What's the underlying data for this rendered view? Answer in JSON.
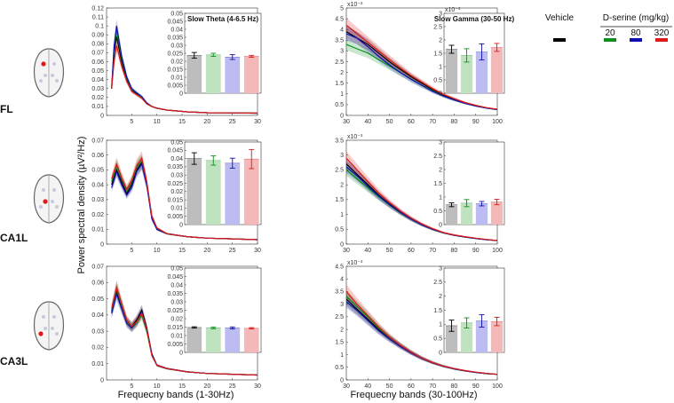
{
  "row_labels": [
    "FL",
    "CA1L",
    "CA3L"
  ],
  "ylabel": "Power spectral density (µV²/Hz)",
  "xlabel_low": "Frequecny bands (1-30Hz)",
  "xlabel_high": "Frequecny bands (30-100Hz)",
  "legend": {
    "vehicle": "Vehicle",
    "dserine": "D-serine (mg/kg)",
    "doses": [
      "20",
      "80",
      "320"
    ]
  },
  "colors": {
    "vehicle": "#000000",
    "d20": "#0a8f1e",
    "d80": "#1010b0",
    "d320": "#e01818",
    "bar_vehicle": "#bdbdbd",
    "bar_d20": "#bfe3bf",
    "bar_d80": "#bcbcf2",
    "bar_d320": "#f5b8b8"
  },
  "chart_data": [
    {
      "type": "line",
      "panel": "FL-low",
      "xlabel": "Frequecny bands (1-30Hz)",
      "ylabel": "Power spectral density (µV²/Hz)",
      "xlim": [
        0,
        30
      ],
      "ylim": [
        0,
        0.12
      ],
      "xticks": [
        "5",
        "10",
        "15",
        "20",
        "25",
        "30"
      ],
      "yticks": [
        "0",
        "0.01",
        "0.02",
        "0.03",
        "0.04",
        "0.05",
        "0.06",
        "0.07",
        "0.08",
        "0.09",
        "0.1",
        "0.11",
        "0.12"
      ],
      "x": [
        1,
        1.5,
        2,
        3,
        4,
        5,
        6,
        7,
        8,
        9,
        10,
        12,
        14,
        16,
        18,
        20,
        25,
        30
      ],
      "series": [
        {
          "name": "Vehicle",
          "values": [
            0.03,
            0.07,
            0.088,
            0.06,
            0.04,
            0.028,
            0.024,
            0.02,
            0.013,
            0.01,
            0.008,
            0.006,
            0.005,
            0.004,
            0.0035,
            0.003,
            0.0028,
            0.0025
          ]
        },
        {
          "name": "20",
          "values": [
            0.03,
            0.075,
            0.095,
            0.064,
            0.042,
            0.029,
            0.025,
            0.02,
            0.013,
            0.01,
            0.008,
            0.006,
            0.005,
            0.004,
            0.0035,
            0.003,
            0.0028,
            0.0025
          ]
        },
        {
          "name": "80",
          "values": [
            0.03,
            0.078,
            0.1,
            0.066,
            0.043,
            0.03,
            0.025,
            0.021,
            0.014,
            0.01,
            0.008,
            0.006,
            0.005,
            0.004,
            0.0035,
            0.003,
            0.0028,
            0.0025
          ]
        },
        {
          "name": "320",
          "values": [
            0.03,
            0.06,
            0.078,
            0.055,
            0.038,
            0.027,
            0.023,
            0.019,
            0.013,
            0.01,
            0.008,
            0.006,
            0.005,
            0.004,
            0.0035,
            0.003,
            0.0028,
            0.0025
          ]
        }
      ]
    },
    {
      "type": "bar",
      "panel": "FL-low-inset",
      "title": "Slow Theta (4-6.5 Hz)",
      "ylim": [
        0,
        0.05
      ],
      "yticks": [
        "0",
        "0.005",
        "0.01",
        "0.015",
        "0.02",
        "0.025",
        "0.03",
        "0.035",
        "0.04",
        "0.045",
        "0.05"
      ],
      "categories": [
        "Vehicle",
        "20",
        "80",
        "320"
      ],
      "values": [
        0.0237,
        0.024,
        0.0226,
        0.0231
      ],
      "errors": [
        0.0018,
        0.001,
        0.0015,
        0.0006
      ]
    },
    {
      "type": "line",
      "panel": "FL-high",
      "xlabel": "Frequecny bands (30-100Hz)",
      "exponent": "x10⁻³",
      "xlim": [
        30,
        100
      ],
      "ylim": [
        0,
        5
      ],
      "xticks": [
        "30",
        "40",
        "50",
        "60",
        "70",
        "80",
        "90",
        "100"
      ],
      "yticks": [
        "0",
        "0.5",
        "1",
        "1.5",
        "2",
        "2.5",
        "3",
        "3.5",
        "4",
        "4.5",
        "5"
      ],
      "x": [
        30,
        35,
        40,
        45,
        50,
        55,
        60,
        65,
        70,
        75,
        80,
        85,
        90,
        95,
        100
      ],
      "series": [
        {
          "name": "Vehicle",
          "values": [
            3.9,
            3.6,
            3.3,
            2.9,
            2.5,
            2.15,
            1.8,
            1.5,
            1.2,
            0.95,
            0.75,
            0.58,
            0.45,
            0.35,
            0.28
          ]
        },
        {
          "name": "20",
          "values": [
            3.3,
            3.1,
            2.9,
            2.6,
            2.3,
            2.0,
            1.7,
            1.4,
            1.15,
            0.9,
            0.72,
            0.56,
            0.44,
            0.34,
            0.27
          ]
        },
        {
          "name": "80",
          "values": [
            3.8,
            3.6,
            3.2,
            2.75,
            2.35,
            2.0,
            1.68,
            1.4,
            1.12,
            0.9,
            0.72,
            0.56,
            0.44,
            0.34,
            0.27
          ]
        },
        {
          "name": "320",
          "values": [
            4.2,
            3.8,
            3.4,
            3.0,
            2.6,
            2.22,
            1.85,
            1.55,
            1.25,
            0.98,
            0.78,
            0.6,
            0.47,
            0.36,
            0.29
          ]
        }
      ]
    },
    {
      "type": "bar",
      "panel": "FL-high-inset",
      "title": "Slow Gamma (30-50 Hz)",
      "exponent": "x10⁻³",
      "ylim": [
        0,
        3
      ],
      "yticks": [
        "0",
        "0.5",
        "1",
        "1.5",
        "2",
        "2.5",
        "3"
      ],
      "categories": [
        "Vehicle",
        "20",
        "80",
        "320"
      ],
      "values": [
        1.65,
        1.42,
        1.55,
        1.72
      ],
      "errors": [
        0.15,
        0.25,
        0.3,
        0.15
      ]
    },
    {
      "type": "line",
      "panel": "CA1L-low",
      "xlim": [
        0,
        30
      ],
      "ylim": [
        0,
        0.07
      ],
      "xticks": [
        "5",
        "10",
        "15",
        "20",
        "25",
        "30"
      ],
      "yticks": [
        "0",
        "0.01",
        "0.02",
        "0.03",
        "0.04",
        "0.05",
        "0.06",
        "0.07"
      ],
      "x": [
        1,
        2,
        3,
        4,
        5,
        6,
        7,
        8,
        9,
        10,
        12,
        14,
        16,
        18,
        20,
        25,
        30
      ],
      "series": [
        {
          "name": "Vehicle",
          "values": [
            0.04,
            0.05,
            0.042,
            0.034,
            0.04,
            0.05,
            0.055,
            0.04,
            0.018,
            0.01,
            0.007,
            0.006,
            0.005,
            0.0045,
            0.004,
            0.0035,
            0.003
          ]
        },
        {
          "name": "20",
          "values": [
            0.042,
            0.053,
            0.044,
            0.036,
            0.042,
            0.052,
            0.056,
            0.041,
            0.018,
            0.01,
            0.007,
            0.006,
            0.005,
            0.0045,
            0.004,
            0.0035,
            0.003
          ]
        },
        {
          "name": "80",
          "values": [
            0.038,
            0.049,
            0.04,
            0.033,
            0.038,
            0.049,
            0.054,
            0.04,
            0.017,
            0.01,
            0.007,
            0.006,
            0.005,
            0.0045,
            0.004,
            0.0035,
            0.003
          ]
        },
        {
          "name": "320",
          "values": [
            0.044,
            0.054,
            0.045,
            0.037,
            0.043,
            0.053,
            0.058,
            0.042,
            0.019,
            0.011,
            0.007,
            0.006,
            0.005,
            0.0045,
            0.004,
            0.0035,
            0.003
          ]
        }
      ]
    },
    {
      "type": "bar",
      "panel": "CA1L-low-inset",
      "ylim": [
        0,
        0.05
      ],
      "yticks": [
        "0",
        "0.005",
        "0.01",
        "0.015",
        "0.02",
        "0.025",
        "0.03",
        "0.035",
        "0.04",
        "0.045",
        "0.05"
      ],
      "categories": [
        "Vehicle",
        "20",
        "80",
        "320"
      ],
      "values": [
        0.04,
        0.0388,
        0.0372,
        0.0397
      ],
      "errors": [
        0.0035,
        0.0028,
        0.003,
        0.0058
      ]
    },
    {
      "type": "line",
      "panel": "CA1L-high",
      "exponent": "x10⁻³",
      "xlim": [
        30,
        100
      ],
      "ylim": [
        0,
        3.5
      ],
      "xticks": [
        "30",
        "40",
        "50",
        "60",
        "70",
        "80",
        "90",
        "100"
      ],
      "yticks": [
        "0",
        "0.5",
        "1",
        "1.5",
        "2",
        "2.5",
        "3",
        "3.5"
      ],
      "x": [
        30,
        35,
        40,
        45,
        50,
        55,
        60,
        65,
        70,
        75,
        80,
        85,
        90,
        95,
        100
      ],
      "series": [
        {
          "name": "Vehicle",
          "values": [
            2.7,
            2.35,
            2.0,
            1.65,
            1.35,
            1.08,
            0.85,
            0.66,
            0.5,
            0.38,
            0.3,
            0.24,
            0.19,
            0.15,
            0.12
          ]
        },
        {
          "name": "20",
          "values": [
            2.5,
            2.2,
            1.9,
            1.6,
            1.32,
            1.06,
            0.84,
            0.65,
            0.5,
            0.38,
            0.3,
            0.24,
            0.19,
            0.15,
            0.12
          ]
        },
        {
          "name": "80",
          "values": [
            2.6,
            2.3,
            1.95,
            1.62,
            1.33,
            1.07,
            0.84,
            0.65,
            0.5,
            0.38,
            0.3,
            0.24,
            0.19,
            0.15,
            0.12
          ]
        },
        {
          "name": "320",
          "values": [
            2.9,
            2.5,
            2.1,
            1.72,
            1.4,
            1.12,
            0.88,
            0.68,
            0.52,
            0.39,
            0.31,
            0.25,
            0.2,
            0.16,
            0.12
          ]
        }
      ]
    },
    {
      "type": "bar",
      "panel": "CA1L-high-inset",
      "ylim": [
        0,
        3
      ],
      "yticks": [
        "0",
        "0.5",
        "1",
        "1.5",
        "2",
        "2.5",
        "3"
      ],
      "categories": [
        "Vehicle",
        "20",
        "80",
        "320"
      ],
      "values": [
        0.72,
        0.78,
        0.76,
        0.82
      ],
      "errors": [
        0.07,
        0.13,
        0.08,
        0.1
      ]
    },
    {
      "type": "line",
      "panel": "CA3L-low",
      "xlim": [
        0,
        30
      ],
      "ylim": [
        0,
        0.07
      ],
      "xticks": [
        "5",
        "10",
        "15",
        "20",
        "25",
        "30"
      ],
      "yticks": [
        "0",
        "0.01",
        "0.02",
        "0.03",
        "0.04",
        "0.05",
        "0.06",
        "0.07"
      ],
      "x": [
        1,
        2,
        3,
        4,
        5,
        6,
        7,
        8,
        9,
        10,
        12,
        14,
        16,
        18,
        20,
        25,
        30
      ],
      "series": [
        {
          "name": "Vehicle",
          "values": [
            0.042,
            0.055,
            0.045,
            0.036,
            0.033,
            0.037,
            0.043,
            0.032,
            0.016,
            0.009,
            0.007,
            0.006,
            0.005,
            0.0045,
            0.004,
            0.0035,
            0.003
          ]
        },
        {
          "name": "20",
          "values": [
            0.043,
            0.056,
            0.046,
            0.036,
            0.032,
            0.035,
            0.04,
            0.03,
            0.015,
            0.009,
            0.007,
            0.006,
            0.005,
            0.0045,
            0.004,
            0.0035,
            0.003
          ]
        },
        {
          "name": "80",
          "values": [
            0.041,
            0.053,
            0.044,
            0.035,
            0.032,
            0.036,
            0.042,
            0.031,
            0.016,
            0.009,
            0.007,
            0.006,
            0.005,
            0.0045,
            0.004,
            0.0035,
            0.003
          ]
        },
        {
          "name": "320",
          "values": [
            0.044,
            0.057,
            0.047,
            0.037,
            0.033,
            0.036,
            0.041,
            0.031,
            0.015,
            0.009,
            0.007,
            0.006,
            0.005,
            0.0045,
            0.004,
            0.0035,
            0.003
          ]
        }
      ]
    },
    {
      "type": "bar",
      "panel": "CA3L-low-inset",
      "ylim": [
        0,
        0.05
      ],
      "yticks": [
        "0",
        "0.005",
        "0.01",
        "0.015",
        "0.02",
        "0.025",
        "0.03",
        "0.035",
        "0.04",
        "0.045",
        "0.05"
      ],
      "categories": [
        "Vehicle",
        "20",
        "80",
        "320"
      ],
      "values": [
        0.0148,
        0.0145,
        0.0145,
        0.0143
      ],
      "errors": [
        0.0004,
        0.0005,
        0.0006,
        0.0004
      ]
    },
    {
      "type": "line",
      "panel": "CA3L-high",
      "exponent": "x10⁻³",
      "xlim": [
        30,
        100
      ],
      "ylim": [
        0,
        4.5
      ],
      "xticks": [
        "30",
        "40",
        "50",
        "60",
        "70",
        "80",
        "90",
        "100"
      ],
      "yticks": [
        "0",
        "0.5",
        "1",
        "1.5",
        "2",
        "2.5",
        "3",
        "3.5",
        "4",
        "4.5"
      ],
      "x": [
        30,
        35,
        40,
        45,
        50,
        55,
        60,
        65,
        70,
        75,
        80,
        85,
        90,
        95,
        100
      ],
      "series": [
        {
          "name": "Vehicle",
          "values": [
            3.2,
            2.8,
            2.4,
            2.0,
            1.65,
            1.35,
            1.08,
            0.86,
            0.68,
            0.54,
            0.44,
            0.36,
            0.3,
            0.25,
            0.22
          ]
        },
        {
          "name": "20",
          "values": [
            3.3,
            2.9,
            2.5,
            2.05,
            1.68,
            1.37,
            1.1,
            0.87,
            0.69,
            0.55,
            0.44,
            0.36,
            0.3,
            0.25,
            0.22
          ]
        },
        {
          "name": "80",
          "values": [
            3.1,
            2.75,
            2.35,
            1.95,
            1.62,
            1.33,
            1.07,
            0.85,
            0.68,
            0.54,
            0.44,
            0.36,
            0.3,
            0.25,
            0.22
          ]
        },
        {
          "name": "320",
          "values": [
            3.5,
            3.0,
            2.55,
            2.1,
            1.7,
            1.38,
            1.1,
            0.87,
            0.69,
            0.55,
            0.45,
            0.37,
            0.31,
            0.26,
            0.22
          ]
        }
      ]
    },
    {
      "type": "bar",
      "panel": "CA3L-high-inset",
      "ylim": [
        0,
        3
      ],
      "yticks": [
        "0",
        "0.5",
        "1",
        "1.5",
        "2",
        "2.5",
        "3"
      ],
      "categories": [
        "Vehicle",
        "20",
        "80",
        "320"
      ],
      "values": [
        0.95,
        1.05,
        1.12,
        1.1
      ],
      "errors": [
        0.2,
        0.18,
        0.22,
        0.15
      ]
    }
  ]
}
